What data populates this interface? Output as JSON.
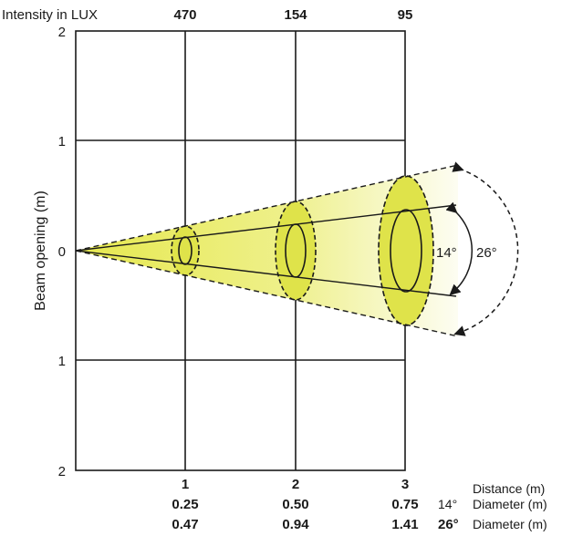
{
  "header": {
    "intensity_label": "Intensity in LUX",
    "lux_values": [
      "470",
      "154",
      "95"
    ]
  },
  "y_axis": {
    "title": "Beam opening (m)",
    "ticks": [
      "2",
      "1",
      "0",
      "1",
      "2"
    ]
  },
  "x_axis": {
    "ticks": [
      "1",
      "2",
      "3"
    ],
    "title": "Distance (m)"
  },
  "angles": {
    "narrow": "14°",
    "wide": "26°"
  },
  "diameters": {
    "row1": {
      "angle": "14°",
      "label": "Diameter (m)",
      "values": [
        "0.25",
        "0.50",
        "0.75"
      ]
    },
    "row2": {
      "angle": "26°",
      "label": "Diameter (m)",
      "values": [
        "0.47",
        "0.94",
        "1.41"
      ]
    }
  },
  "colors": {
    "beam_fill": "#dfe34a",
    "beam_fade": "#fbfbe6",
    "lines": "#1a1a1a"
  }
}
